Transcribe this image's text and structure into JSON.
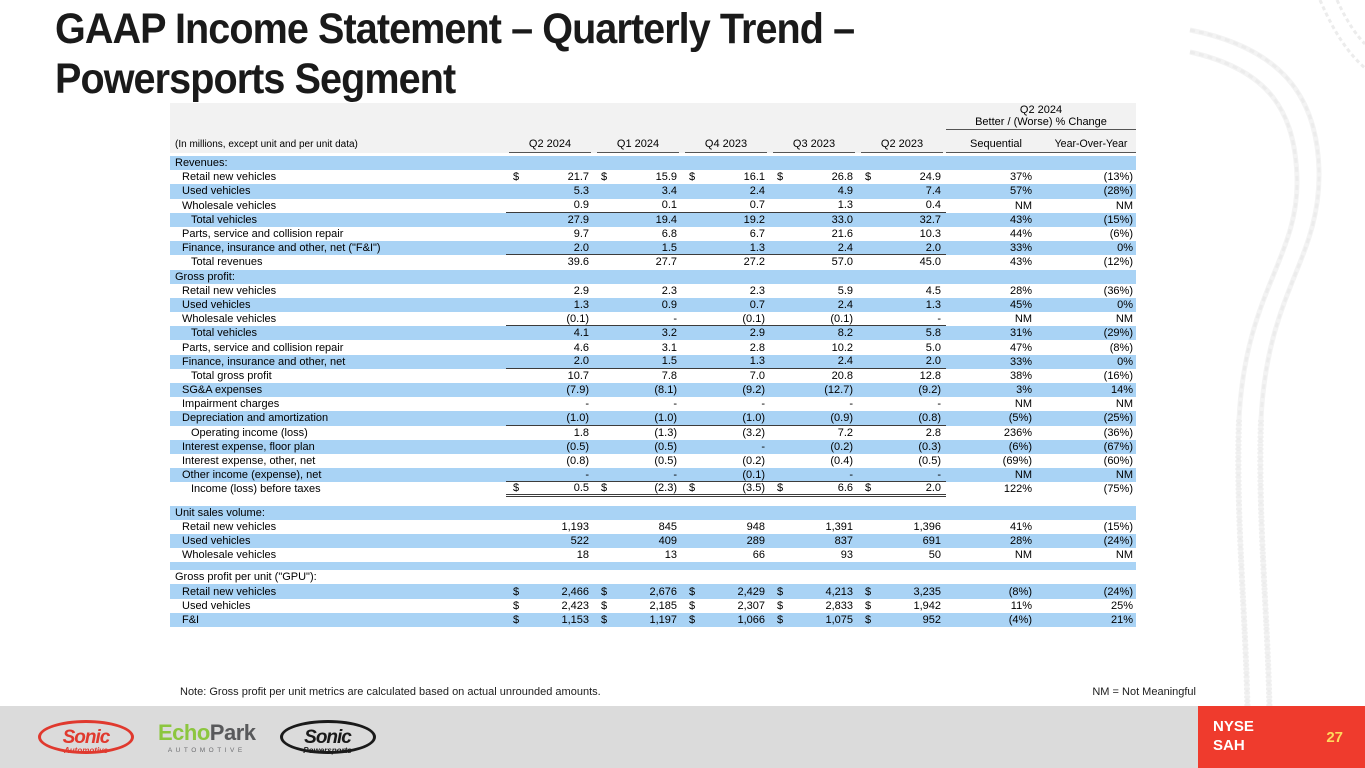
{
  "slide": {
    "title_line1": "GAAP Income Statement – Quarterly Trend –",
    "title_line2": "Powersports Segment",
    "note": "Note: Gross profit per unit metrics are calculated based on actual unrounded amounts.",
    "nm_legend": "NM = Not Meaningful",
    "ticker_line1": "NYSE",
    "ticker_line2": "SAH",
    "page_number": "27",
    "colors": {
      "row_blue": "#A9D3F5",
      "header_gray": "#F2F2F2",
      "footer_gray": "#DBDBDB",
      "footer_red": "#EF3B2D",
      "page_yellow": "#FFD95C",
      "echo_green": "#8CC63F",
      "sonic_red": "#E0392E",
      "title_black": "#1A1A1A"
    }
  },
  "logos": {
    "sonic_automotive": {
      "name": "Sonic",
      "sub": "Automotive"
    },
    "echopark": {
      "green": "Echo",
      "dark": "Park",
      "sub": "AUTOMOTIVE"
    },
    "sonic_powersports": {
      "name": "Sonic",
      "sub": "Powersports"
    }
  },
  "table": {
    "subtitle": "(In millions, except unit and per unit data)",
    "change_header_line1": "Q2 2024",
    "change_header_line2": "Better / (Worse) % Change",
    "columns": [
      "Q2 2024",
      "Q1 2024",
      "Q4 2023",
      "Q3 2023",
      "Q2 2023"
    ],
    "change_columns": [
      "Sequential",
      "Year-Over-Year"
    ],
    "rows": [
      {
        "type": "section",
        "shade": "b",
        "indent": 0,
        "label": "Revenues:"
      },
      {
        "type": "item",
        "shade": "w",
        "indent": 1,
        "label": "Retail new vehicles",
        "dollar": true,
        "v": [
          "21.7",
          "15.9",
          "16.1",
          "26.8",
          "24.9"
        ],
        "seq": "37%",
        "yoy": "(13%)"
      },
      {
        "type": "item",
        "shade": "b",
        "indent": 1,
        "label": "Used vehicles",
        "v": [
          "5.3",
          "3.4",
          "2.4",
          "4.9",
          "7.4"
        ],
        "seq": "57%",
        "yoy": "(28%)"
      },
      {
        "type": "item",
        "shade": "w",
        "indent": 1,
        "label": "Wholesale vehicles",
        "v": [
          "0.9",
          "0.1",
          "0.7",
          "1.3",
          "0.4"
        ],
        "seq": "NM",
        "yoy": "NM",
        "ul": true
      },
      {
        "type": "item",
        "shade": "b",
        "indent": 2,
        "label": "Total vehicles",
        "v": [
          "27.9",
          "19.4",
          "19.2",
          "33.0",
          "32.7"
        ],
        "seq": "43%",
        "yoy": "(15%)"
      },
      {
        "type": "item",
        "shade": "w",
        "indent": 1,
        "label": "Parts, service and collision repair",
        "v": [
          "9.7",
          "6.8",
          "6.7",
          "21.6",
          "10.3"
        ],
        "seq": "44%",
        "yoy": "(6%)"
      },
      {
        "type": "item",
        "shade": "b",
        "indent": 1,
        "label": "Finance, insurance and other, net (\"F&I\")",
        "v": [
          "2.0",
          "1.5",
          "1.3",
          "2.4",
          "2.0"
        ],
        "seq": "33%",
        "yoy": "0%",
        "ul": true
      },
      {
        "type": "item",
        "shade": "w",
        "indent": 2,
        "label": "Total revenues",
        "v": [
          "39.6",
          "27.7",
          "27.2",
          "57.0",
          "45.0"
        ],
        "seq": "43%",
        "yoy": "(12%)"
      },
      {
        "type": "section",
        "shade": "b",
        "indent": 0,
        "label": "Gross profit:"
      },
      {
        "type": "item",
        "shade": "w",
        "indent": 1,
        "label": "Retail new vehicles",
        "v": [
          "2.9",
          "2.3",
          "2.3",
          "5.9",
          "4.5"
        ],
        "seq": "28%",
        "yoy": "(36%)"
      },
      {
        "type": "item",
        "shade": "b",
        "indent": 1,
        "label": "Used vehicles",
        "v": [
          "1.3",
          "0.9",
          "0.7",
          "2.4",
          "1.3"
        ],
        "seq": "45%",
        "yoy": "0%"
      },
      {
        "type": "item",
        "shade": "w",
        "indent": 1,
        "label": "Wholesale vehicles",
        "v": [
          "(0.1)",
          "-",
          "(0.1)",
          "(0.1)",
          "-"
        ],
        "seq": "NM",
        "yoy": "NM",
        "ul": true
      },
      {
        "type": "item",
        "shade": "b",
        "indent": 2,
        "label": "Total vehicles",
        "v": [
          "4.1",
          "3.2",
          "2.9",
          "8.2",
          "5.8"
        ],
        "seq": "31%",
        "yoy": "(29%)"
      },
      {
        "type": "item",
        "shade": "w",
        "indent": 1,
        "label": "Parts, service and collision repair",
        "v": [
          "4.6",
          "3.1",
          "2.8",
          "10.2",
          "5.0"
        ],
        "seq": "47%",
        "yoy": "(8%)"
      },
      {
        "type": "item",
        "shade": "b",
        "indent": 1,
        "label": "Finance, insurance and other, net",
        "v": [
          "2.0",
          "1.5",
          "1.3",
          "2.4",
          "2.0"
        ],
        "seq": "33%",
        "yoy": "0%",
        "ul": true
      },
      {
        "type": "item",
        "shade": "w",
        "indent": 2,
        "label": "Total gross profit",
        "v": [
          "10.7",
          "7.8",
          "7.0",
          "20.8",
          "12.8"
        ],
        "seq": "38%",
        "yoy": "(16%)"
      },
      {
        "type": "item",
        "shade": "b",
        "indent": 1,
        "label": "SG&A expenses",
        "v": [
          "(7.9)",
          "(8.1)",
          "(9.2)",
          "(12.7)",
          "(9.2)"
        ],
        "seq": "3%",
        "yoy": "14%"
      },
      {
        "type": "item",
        "shade": "w",
        "indent": 1,
        "label": "Impairment charges",
        "v": [
          "-",
          "-",
          "-",
          "-",
          "-"
        ],
        "seq": "NM",
        "yoy": "NM"
      },
      {
        "type": "item",
        "shade": "b",
        "indent": 1,
        "label": "Depreciation and amortization",
        "v": [
          "(1.0)",
          "(1.0)",
          "(1.0)",
          "(0.9)",
          "(0.8)"
        ],
        "seq": "(5%)",
        "yoy": "(25%)",
        "ul": true
      },
      {
        "type": "item",
        "shade": "w",
        "indent": 2,
        "label": "Operating income (loss)",
        "v": [
          "1.8",
          "(1.3)",
          "(3.2)",
          "7.2",
          "2.8"
        ],
        "seq": "236%",
        "yoy": "(36%)"
      },
      {
        "type": "item",
        "shade": "b",
        "indent": 1,
        "label": "Interest expense, floor plan",
        "v": [
          "(0.5)",
          "(0.5)",
          "-",
          "(0.2)",
          "(0.3)"
        ],
        "seq": "(6%)",
        "yoy": "(67%)"
      },
      {
        "type": "item",
        "shade": "w",
        "indent": 1,
        "label": "Interest expense, other, net",
        "v": [
          "(0.8)",
          "(0.5)",
          "(0.2)",
          "(0.4)",
          "(0.5)"
        ],
        "seq": "(69%)",
        "yoy": "(60%)"
      },
      {
        "type": "item",
        "shade": "b",
        "indent": 1,
        "label": "Other income (expense), net",
        "v": [
          "-",
          "-",
          "(0.1)",
          "-",
          "-"
        ],
        "seq": "NM",
        "yoy": "NM",
        "ul": true
      },
      {
        "type": "item",
        "shade": "w",
        "indent": 2,
        "label": "Income (loss) before taxes",
        "dollar": true,
        "v": [
          "0.5",
          "(2.3)",
          "(3.5)",
          "6.6",
          "2.0"
        ],
        "seq": "122%",
        "yoy": "(75%)",
        "dbl": true
      },
      {
        "type": "spacer",
        "shade": "w",
        "h": 9
      },
      {
        "type": "section",
        "shade": "b",
        "indent": 0,
        "label": "Unit sales volume:"
      },
      {
        "type": "item",
        "shade": "w",
        "indent": 1,
        "label": "Retail new vehicles",
        "v": [
          "1,193",
          "845",
          "948",
          "1,391",
          "1,396"
        ],
        "seq": "41%",
        "yoy": "(15%)"
      },
      {
        "type": "item",
        "shade": "b",
        "indent": 1,
        "label": "Used vehicles",
        "v": [
          "522",
          "409",
          "289",
          "837",
          "691"
        ],
        "seq": "28%",
        "yoy": "(24%)"
      },
      {
        "type": "item",
        "shade": "w",
        "indent": 1,
        "label": "Wholesale vehicles",
        "v": [
          "18",
          "13",
          "66",
          "93",
          "50"
        ],
        "seq": "NM",
        "yoy": "NM"
      },
      {
        "type": "spacer",
        "shade": "b",
        "h": 8
      },
      {
        "type": "section",
        "shade": "w",
        "indent": 0,
        "label": "Gross profit per unit (\"GPU\"):"
      },
      {
        "type": "item",
        "shade": "b",
        "indent": 1,
        "label": "Retail new vehicles",
        "dollar": true,
        "v": [
          "2,466",
          "2,676",
          "2,429",
          "4,213",
          "3,235"
        ],
        "seq": "(8%)",
        "yoy": "(24%)"
      },
      {
        "type": "item",
        "shade": "w",
        "indent": 1,
        "label": "Used vehicles",
        "dollar": true,
        "v": [
          "2,423",
          "2,185",
          "2,307",
          "2,833",
          "1,942"
        ],
        "seq": "11%",
        "yoy": "25%"
      },
      {
        "type": "item",
        "shade": "b",
        "indent": 1,
        "label": "F&I",
        "dollar": true,
        "v": [
          "1,153",
          "1,197",
          "1,066",
          "1,075",
          "952"
        ],
        "seq": "(4%)",
        "yoy": "21%"
      }
    ]
  }
}
